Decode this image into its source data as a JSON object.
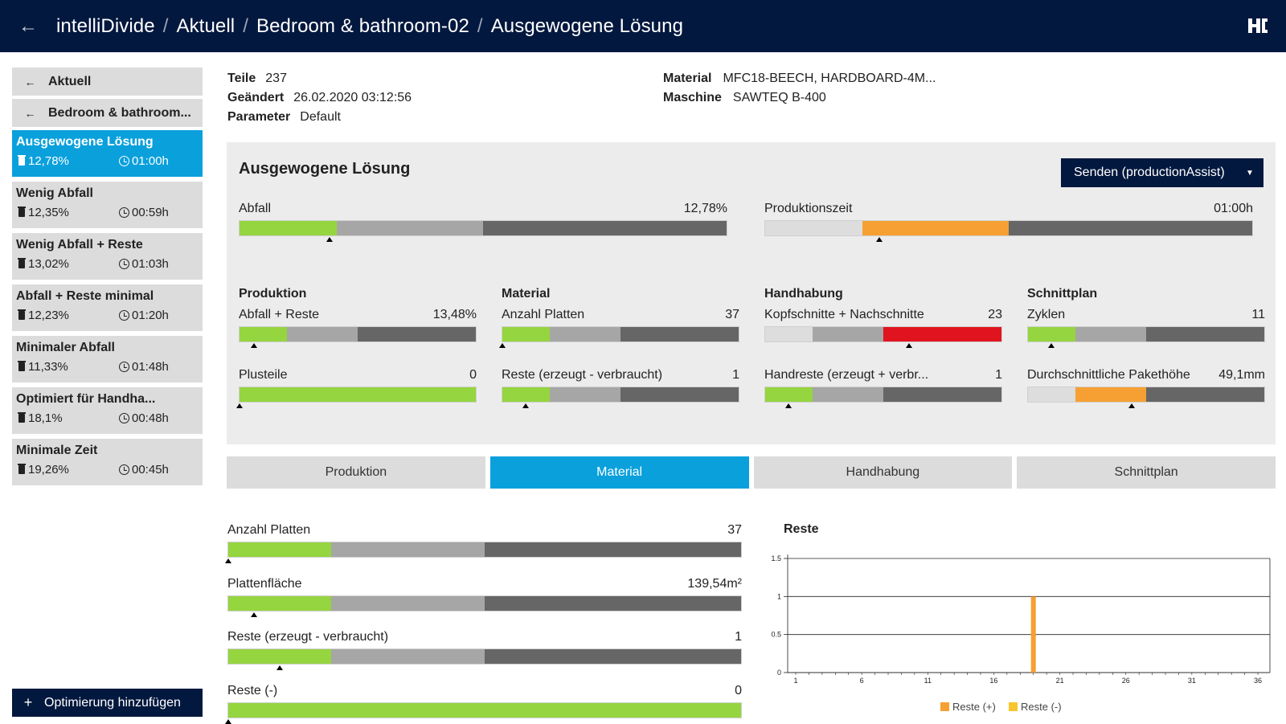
{
  "header": {
    "crumbs": [
      "intelliDivide",
      "Aktuell",
      "Bedroom & bathroom-02",
      "Ausgewogene Lösung"
    ],
    "logo": "HC"
  },
  "sidebar": {
    "back_items": [
      "Aktuell",
      "Bedroom & bathroom..."
    ],
    "options": [
      {
        "name": "Ausgewogene Lösung",
        "waste": "12,78%",
        "time": "01:00h",
        "active": true
      },
      {
        "name": "Wenig Abfall",
        "waste": "12,35%",
        "time": "00:59h",
        "active": false
      },
      {
        "name": "Wenig Abfall + Reste",
        "waste": "13,02%",
        "time": "01:03h",
        "active": false
      },
      {
        "name": "Abfall + Reste minimal",
        "waste": "12,23%",
        "time": "01:20h",
        "active": false
      },
      {
        "name": "Minimaler Abfall",
        "waste": "11,33%",
        "time": "01:48h",
        "active": false
      },
      {
        "name": "Optimiert für Handha...",
        "waste": "18,1%",
        "time": "00:48h",
        "active": false
      },
      {
        "name": "Minimale Zeit",
        "waste": "19,26%",
        "time": "00:45h",
        "active": false
      }
    ],
    "add_label": "Optimierung hinzufügen"
  },
  "info": {
    "teile_label": "Teile",
    "teile": "237",
    "geaendert_label": "Geändert",
    "geaendert": "26.02.2020 03:12:56",
    "parameter_label": "Parameter",
    "parameter": "Default",
    "material_label": "Material",
    "material": "MFC18-BEECH, HARDBOARD-4M...",
    "maschine_label": "Maschine",
    "maschine": "SAWTEQ B-400"
  },
  "panel": {
    "title": "Ausgewogene Lösung",
    "send_label": "Senden (productionAssist)",
    "sections": [
      "Produktion",
      "Material",
      "Handhabung",
      "Schnittplan"
    ],
    "metrics": [
      {
        "label": "Abfall",
        "value": "12,78%",
        "segs": [
          {
            "c": "#95d53f",
            "w": 0.2
          },
          {
            "c": "#a6a6a6",
            "w": 0.3
          },
          {
            "c": "#666666",
            "w": 0.5
          }
        ],
        "marker": 0.185
      },
      {
        "label": "Produktionszeit",
        "value": "01:00h",
        "segs": [
          {
            "c": "#dddddd",
            "w": 0.2
          },
          {
            "c": "#f6a033",
            "w": 0.3
          },
          {
            "c": "#666666",
            "w": 0.5
          }
        ],
        "marker": 0.235
      },
      {
        "label": "Abfall + Reste",
        "value": "13,48%",
        "segs": [
          {
            "c": "#95d53f",
            "w": 0.2
          },
          {
            "c": "#a6a6a6",
            "w": 0.3
          },
          {
            "c": "#666666",
            "w": 0.5
          }
        ],
        "marker": 0.06
      },
      {
        "label": "Plusteile",
        "value": "0",
        "segs": [
          {
            "c": "#95d53f",
            "w": 1.0
          }
        ],
        "marker": 0.0
      },
      {
        "label": "Anzahl Platten",
        "value": "37",
        "segs": [
          {
            "c": "#95d53f",
            "w": 0.2
          },
          {
            "c": "#a6a6a6",
            "w": 0.3
          },
          {
            "c": "#666666",
            "w": 0.5
          }
        ],
        "marker": 0.0
      },
      {
        "label": "Reste (erzeugt - verbraucht)",
        "value": "1",
        "segs": [
          {
            "c": "#95d53f",
            "w": 0.2
          },
          {
            "c": "#a6a6a6",
            "w": 0.3
          },
          {
            "c": "#666666",
            "w": 0.5
          }
        ],
        "marker": 0.1
      },
      {
        "label": "Kopfschnitte + Nachschnitte",
        "value": "23",
        "segs": [
          {
            "c": "#dddddd",
            "w": 0.2
          },
          {
            "c": "#a6a6a6",
            "w": 0.3
          },
          {
            "c": "#e0141e",
            "w": 0.5
          }
        ],
        "marker": 0.61
      },
      {
        "label": "Handreste (erzeugt + verbr...",
        "value": "1",
        "segs": [
          {
            "c": "#95d53f",
            "w": 0.2
          },
          {
            "c": "#a6a6a6",
            "w": 0.3
          },
          {
            "c": "#666666",
            "w": 0.5
          }
        ],
        "marker": 0.1
      },
      {
        "label": "Zyklen",
        "value": "11",
        "segs": [
          {
            "c": "#95d53f",
            "w": 0.2
          },
          {
            "c": "#a6a6a6",
            "w": 0.3
          },
          {
            "c": "#666666",
            "w": 0.5
          }
        ],
        "marker": 0.1
      },
      {
        "label": "Durchschnittliche Pakethöhe",
        "value": "49,1mm",
        "segs": [
          {
            "c": "#dddddd",
            "w": 0.2
          },
          {
            "c": "#f6a033",
            "w": 0.3
          },
          {
            "c": "#666666",
            "w": 0.5
          }
        ],
        "marker": 0.44
      }
    ]
  },
  "tabs": [
    "Produktion",
    "Material",
    "Handhabung",
    "Schnittplan"
  ],
  "active_tab": 1,
  "detail": {
    "metrics": [
      {
        "label": "Anzahl Platten",
        "value": "37",
        "segs": [
          {
            "c": "#95d53f",
            "w": 0.2
          },
          {
            "c": "#a6a6a6",
            "w": 0.3
          },
          {
            "c": "#666666",
            "w": 0.5
          }
        ],
        "marker": 0.0
      },
      {
        "label": "Plattenfläche",
        "value": "139,54m²",
        "segs": [
          {
            "c": "#95d53f",
            "w": 0.2
          },
          {
            "c": "#a6a6a6",
            "w": 0.3
          },
          {
            "c": "#666666",
            "w": 0.5
          }
        ],
        "marker": 0.05
      },
      {
        "label": "Reste (erzeugt - verbraucht)",
        "value": "1",
        "segs": [
          {
            "c": "#95d53f",
            "w": 0.2
          },
          {
            "c": "#a6a6a6",
            "w": 0.3
          },
          {
            "c": "#666666",
            "w": 0.5
          }
        ],
        "marker": 0.1
      },
      {
        "label": "Reste (-)",
        "value": "0",
        "segs": [
          {
            "c": "#95d53f",
            "w": 1.0
          }
        ],
        "marker": 0.0
      }
    ]
  },
  "chart_data": {
    "type": "bar",
    "title": "Reste",
    "x": [
      1,
      36
    ],
    "xticks": [
      1,
      6,
      11,
      16,
      21,
      26,
      31,
      36
    ],
    "ylim": [
      0,
      1.5
    ],
    "yticks": [
      0,
      0.5,
      1,
      1.5
    ],
    "ytick_labels": [
      "0",
      "0.5",
      "1",
      "1.5"
    ],
    "series": [
      {
        "name": "Reste (+)",
        "color": "#f6a033",
        "points": [
          {
            "x": 19,
            "y": 1
          }
        ]
      },
      {
        "name": "Reste (-)",
        "color": "#f7c62f",
        "points": []
      }
    ],
    "legend": "bottom-center",
    "grid": true
  }
}
